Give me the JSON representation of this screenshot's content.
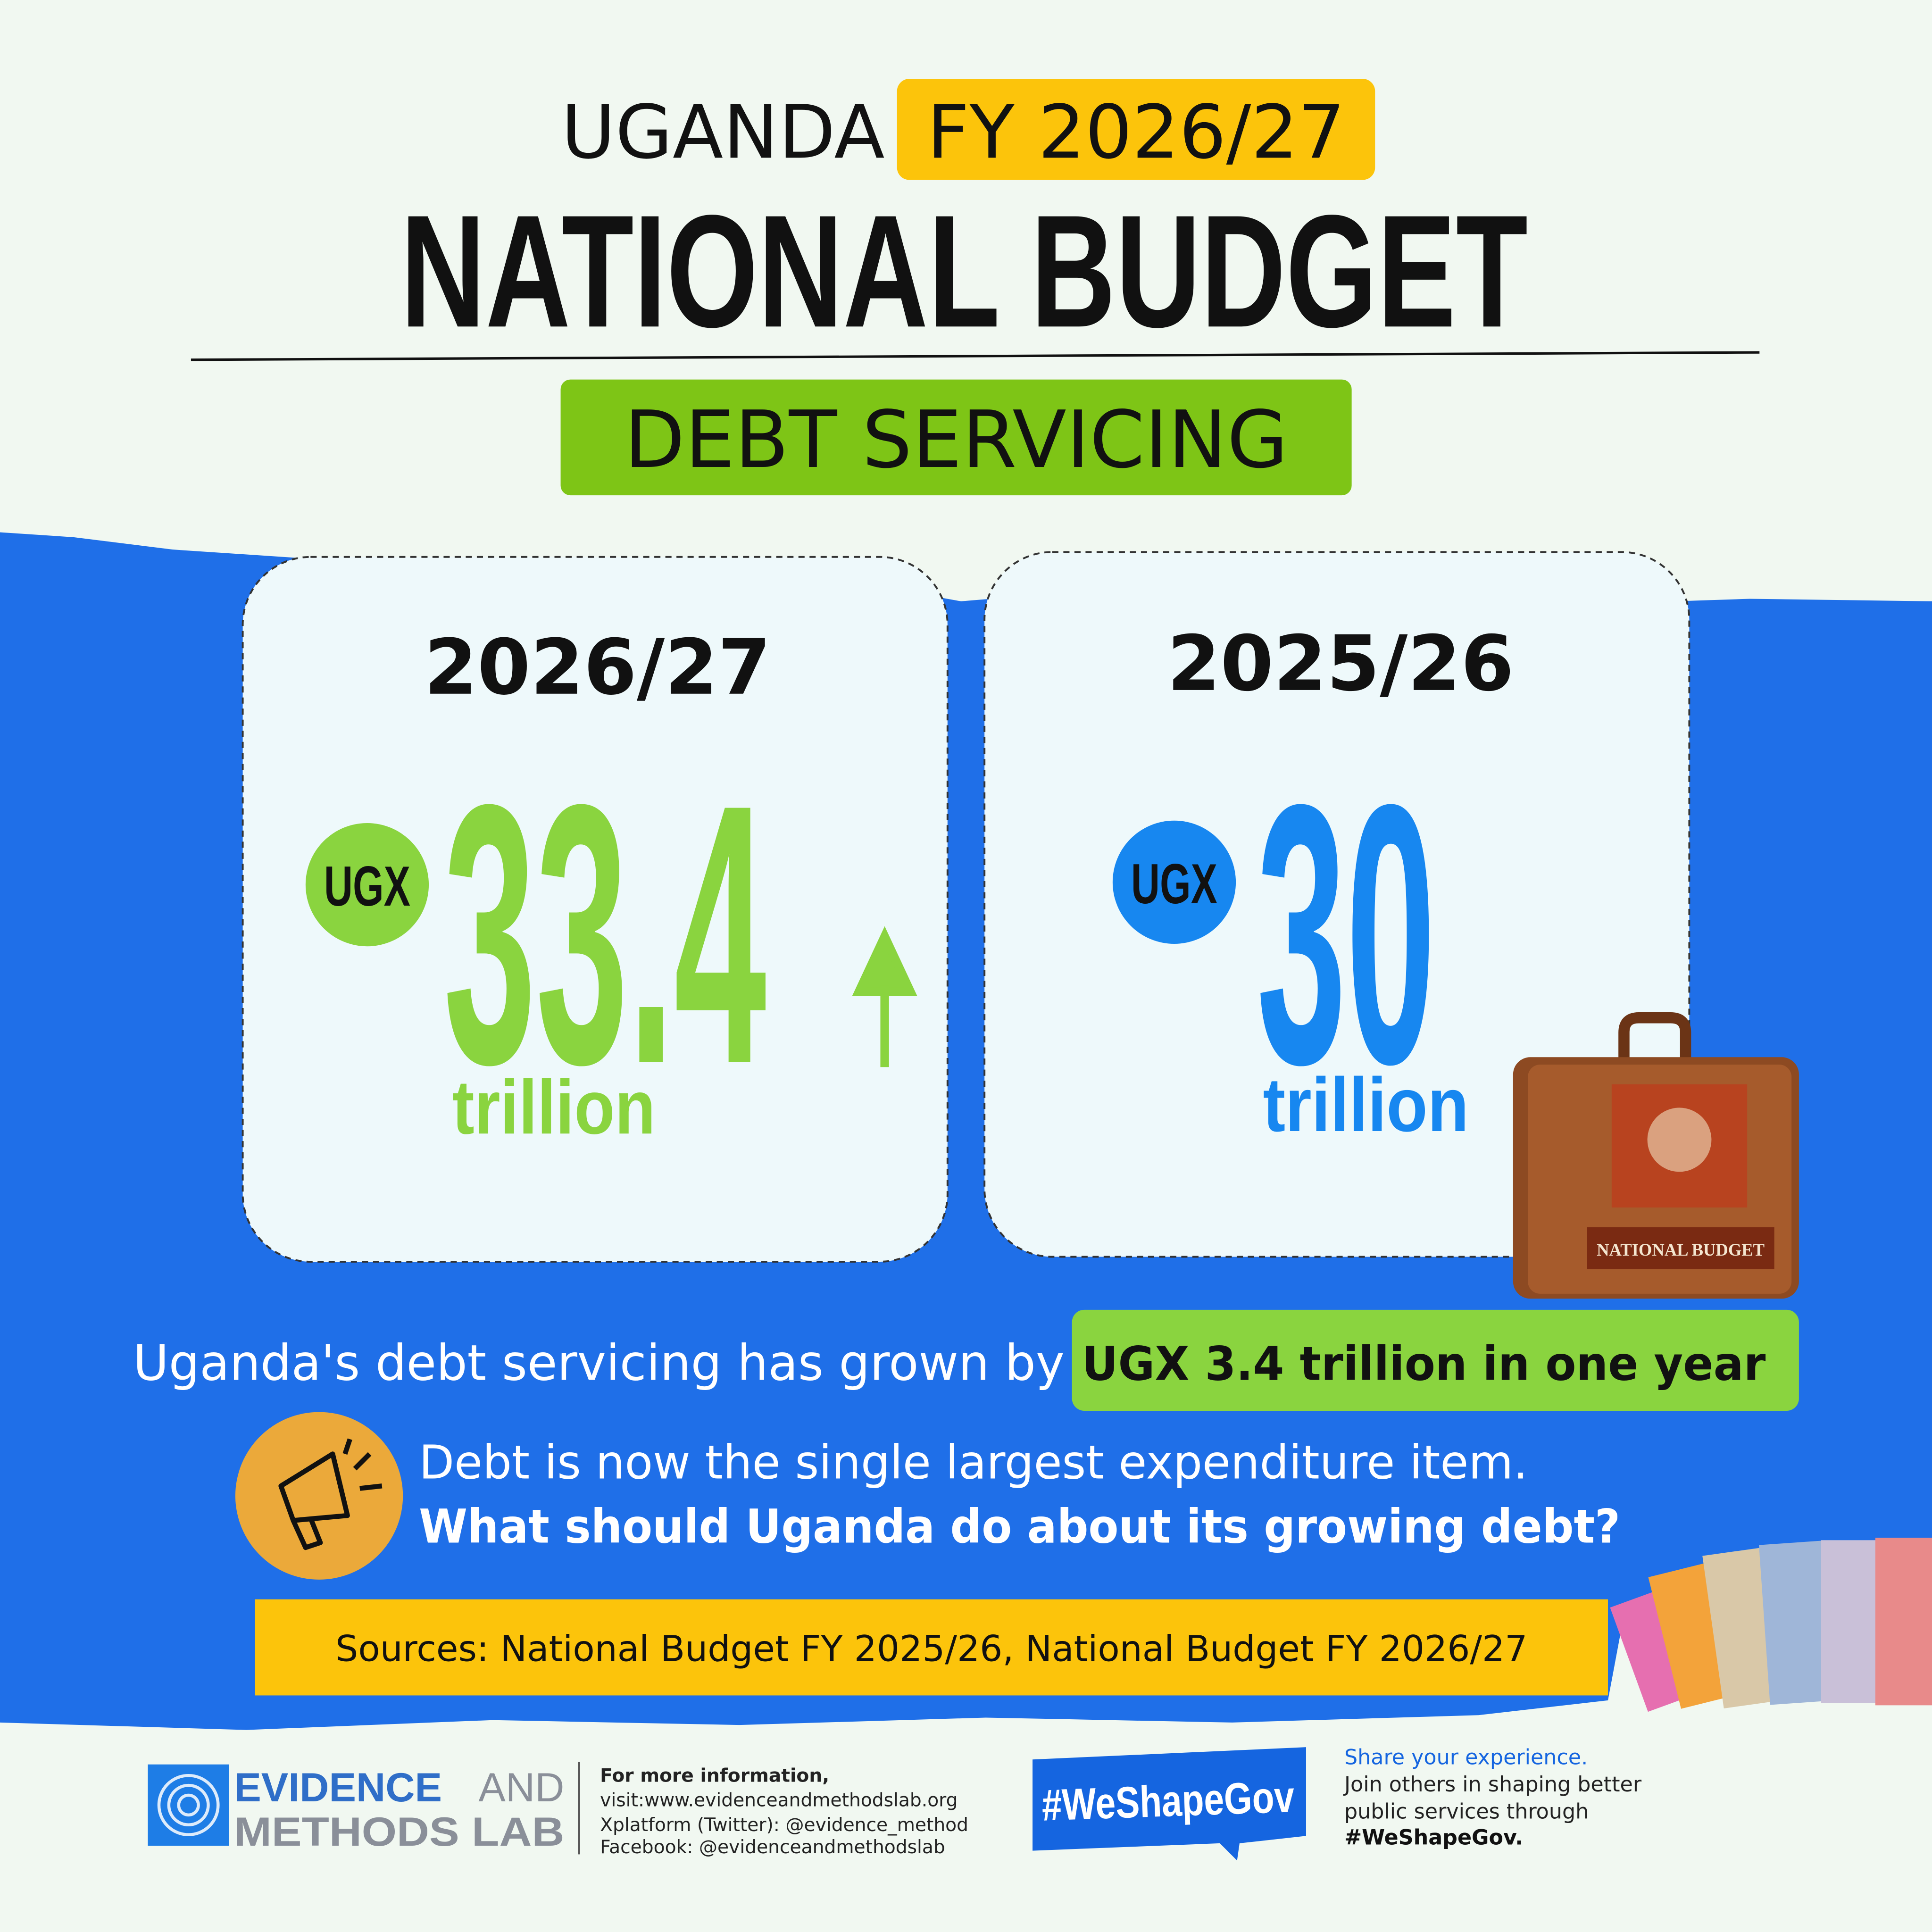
{
  "header": {
    "country": "UGANDA",
    "fiscal_year": "FY 2026/27",
    "title": "NATIONAL BUDGET",
    "topic": "DEBT SERVICING"
  },
  "cards": [
    {
      "year": "2026/27",
      "currency": "UGX",
      "amount": 33.4,
      "unit": "trillion"
    },
    {
      "year": "2025/26",
      "currency": "UGX",
      "amount": 30,
      "unit": "trillion"
    }
  ],
  "briefcase_label": "NATIONAL BUDGET",
  "summary": {
    "text": "Uganda's debt servicing has grown by",
    "highlight": "UGX 3.4 trillion in one year"
  },
  "callout": {
    "statement": "Debt is now the single largest expenditure item.",
    "question": "What should  Uganda do about its growing debt?"
  },
  "sources": "Sources: National Budget FY 2025/26, National Budget FY 2026/27",
  "footer": {
    "logo": {
      "line1_bold": "EVIDENCE",
      "line1_light": "AND",
      "line2": "METHODS LAB"
    },
    "info": [
      "For more information,",
      "visit:www.evidenceandmethodslab.org",
      "Xplatform (Twitter): @evidence_method",
      "Facebook: @evidenceandmethodslab"
    ],
    "hashtag": "#WeShapeGov",
    "share": [
      "Share your experience.",
      "Join others in shaping better",
      "public services through",
      "#WeShapeGov."
    ]
  }
}
